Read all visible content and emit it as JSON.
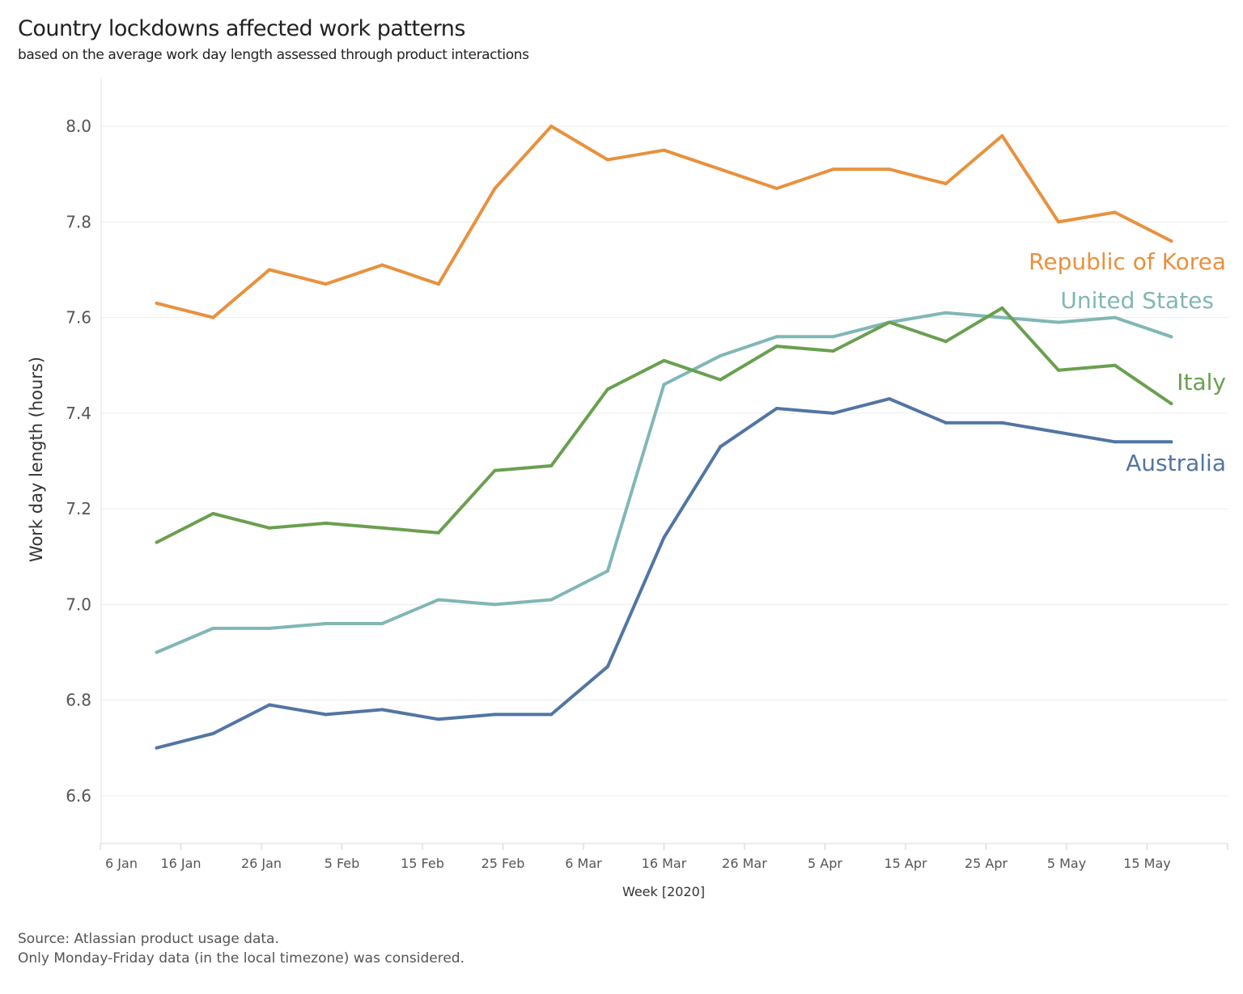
{
  "title": "Country lockdowns affected work patterns",
  "subtitle": "based on the average work day length assessed through product interactions",
  "footnotes": [
    "Source: Atlassian product usage data.",
    "Only Monday-Friday data (in the local timezone) was considered."
  ],
  "chart_data": {
    "type": "line",
    "title": "Country lockdowns affected work patterns",
    "xlabel": "Week [2020]",
    "ylabel": "Work day length (hours)",
    "ylim": [
      6.5,
      8.1
    ],
    "xlim": [
      "2020-01-06",
      "2020-05-25"
    ],
    "grid": "horizontal",
    "legend": "inline labels at line ends (right)",
    "yticks": [
      6.6,
      6.8,
      7.0,
      7.2,
      7.4,
      7.6,
      7.8,
      8.0
    ],
    "ytick_labels": [
      "6.6",
      "6.8",
      "7.0",
      "7.2",
      "7.4",
      "7.6",
      "7.8",
      "8.0"
    ],
    "xticks": [
      "2020-01-06",
      "2020-01-16",
      "2020-01-26",
      "2020-02-05",
      "2020-02-15",
      "2020-02-25",
      "2020-03-06",
      "2020-03-16",
      "2020-03-26",
      "2020-04-05",
      "2020-04-15",
      "2020-04-25",
      "2020-05-05",
      "2020-05-15"
    ],
    "xtick_labels": [
      "6 Jan",
      "16 Jan",
      "26 Jan",
      "5 Feb",
      "15 Feb",
      "25 Feb",
      "6 Mar",
      "16 Mar",
      "26 Mar",
      "5 Apr",
      "15 Apr",
      "25 Apr",
      "5 May",
      "15 May"
    ],
    "x": [
      "2020-01-13",
      "2020-01-20",
      "2020-01-27",
      "2020-02-03",
      "2020-02-10",
      "2020-02-17",
      "2020-02-24",
      "2020-03-02",
      "2020-03-09",
      "2020-03-16",
      "2020-03-23",
      "2020-03-30",
      "2020-04-06",
      "2020-04-13",
      "2020-04-20",
      "2020-04-27",
      "2020-05-04",
      "2020-05-11",
      "2020-05-18"
    ],
    "series": [
      {
        "name": "Republic of Korea",
        "color": "#E8913E",
        "values": [
          7.63,
          7.6,
          7.7,
          7.67,
          7.71,
          7.67,
          7.87,
          8.0,
          7.93,
          7.95,
          7.91,
          7.87,
          7.91,
          7.91,
          7.88,
          7.98,
          7.8,
          7.82,
          7.76
        ]
      },
      {
        "name": "United States",
        "color": "#80B7B5",
        "values": [
          6.9,
          6.95,
          6.95,
          6.96,
          6.96,
          7.01,
          7.0,
          7.01,
          7.07,
          7.46,
          7.52,
          7.56,
          7.56,
          7.59,
          7.61,
          7.6,
          7.59,
          7.6,
          7.56
        ]
      },
      {
        "name": "Italy",
        "color": "#6A9F50",
        "values": [
          7.13,
          7.19,
          7.16,
          7.17,
          7.16,
          7.15,
          7.28,
          7.29,
          7.45,
          7.51,
          7.47,
          7.54,
          7.53,
          7.59,
          7.55,
          7.62,
          7.49,
          7.5,
          7.42
        ]
      },
      {
        "name": "Australia",
        "color": "#5275A3",
        "values": [
          6.7,
          6.73,
          6.79,
          6.77,
          6.78,
          6.76,
          6.77,
          6.77,
          6.87,
          7.14,
          7.33,
          7.41,
          7.4,
          7.43,
          7.38,
          7.38,
          7.36,
          7.34,
          7.34
        ]
      }
    ]
  }
}
